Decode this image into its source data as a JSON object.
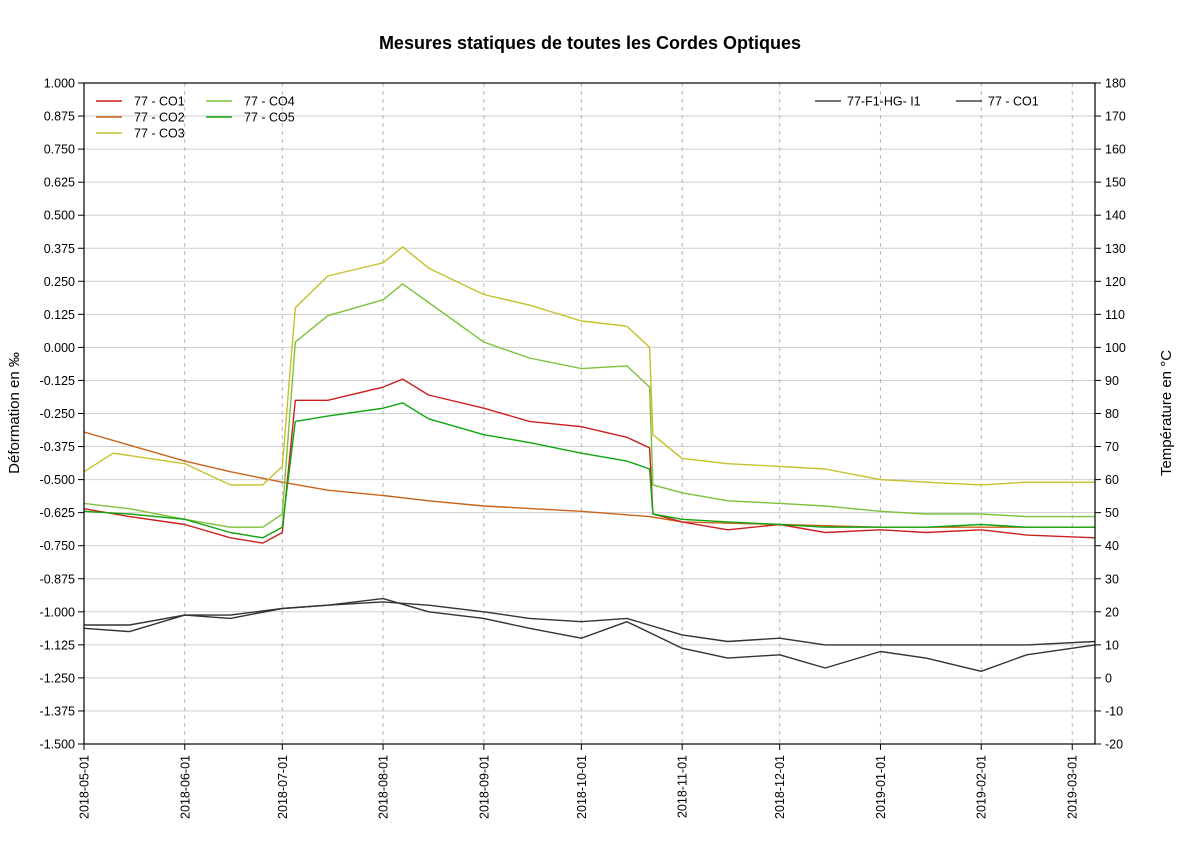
{
  "chart_data": {
    "type": "line",
    "title": "Mesures statiques de toutes les Cordes Optiques",
    "ylabel_left": "Déformation en ‰",
    "ylabel_right": "Température en °C",
    "grid": true,
    "x_axis": {
      "type": "date",
      "range": [
        "2018-05-01",
        "2019-03-08"
      ],
      "tick_labels": [
        "2018-05-01",
        "2018-06-01",
        "2018-07-01",
        "2018-08-01",
        "2018-09-01",
        "2018-10-01",
        "2018-11-01",
        "2018-12-01",
        "2019-01-01",
        "2019-02-01",
        "2019-03-01"
      ]
    },
    "y_left": {
      "range": [
        -1.5,
        1.0
      ],
      "tick_labels": [
        "1.000",
        "0.875",
        "0.750",
        "0.625",
        "0.500",
        "0.375",
        "0.250",
        "0.125",
        "0.000",
        "-0.125",
        "-0.250",
        "-0.375",
        "-0.500",
        "-0.625",
        "-0.750",
        "-0.875",
        "-1.000",
        "-1.125",
        "-1.250",
        "-1.375",
        "-1.500"
      ]
    },
    "y_right": {
      "range": [
        -20,
        180
      ],
      "tick_labels": [
        "180",
        "170",
        "160",
        "150",
        "140",
        "130",
        "120",
        "110",
        "100",
        "90",
        "80",
        "70",
        "60",
        "50",
        "40",
        "30",
        "20",
        "10",
        "0",
        "-10",
        "-20"
      ]
    },
    "legend_left": {
      "placement": "top-left",
      "entries": [
        {
          "label": "77 - CO1",
          "color": "#cc1f1f"
        },
        {
          "label": "77 - CO2",
          "color": "#c8641a"
        },
        {
          "label": "77 - CO3",
          "color": "#c6c02a"
        },
        {
          "label": "77 - CO4",
          "color": "#7cc23a"
        },
        {
          "label": "77 - CO5",
          "color": "#11a511"
        }
      ]
    },
    "legend_right": {
      "placement": "top-right",
      "entries": [
        {
          "label": "77-F1-HG- I1",
          "color": "#444444"
        },
        {
          "label": "77 - CO1",
          "color": "#444444"
        }
      ]
    },
    "series": [
      {
        "name": "77 - CO1",
        "axis": "left",
        "color": "#cc1f1f",
        "x": [
          "2018-05-01",
          "2018-05-15",
          "2018-06-01",
          "2018-06-15",
          "2018-06-25",
          "2018-07-01",
          "2018-07-05",
          "2018-07-15",
          "2018-08-01",
          "2018-08-07",
          "2018-08-15",
          "2018-09-01",
          "2018-09-15",
          "2018-10-01",
          "2018-10-15",
          "2018-10-22",
          "2018-10-23",
          "2018-11-01",
          "2018-11-15",
          "2018-12-01",
          "2018-12-15",
          "2019-01-01",
          "2019-01-15",
          "2019-02-01",
          "2019-02-15",
          "2019-03-08"
        ],
        "y": [
          -0.61,
          -0.64,
          -0.67,
          -0.72,
          -0.74,
          -0.7,
          -0.2,
          -0.2,
          -0.15,
          -0.12,
          -0.18,
          -0.23,
          -0.28,
          -0.3,
          -0.34,
          -0.38,
          -0.63,
          -0.66,
          -0.69,
          -0.67,
          -0.7,
          -0.69,
          -0.7,
          -0.69,
          -0.71,
          -0.72
        ]
      },
      {
        "name": "77 - CO2",
        "axis": "left",
        "color": "#c8641a",
        "x": [
          "2018-05-01",
          "2018-05-15",
          "2018-06-01",
          "2018-06-15",
          "2018-07-01",
          "2018-07-15",
          "2018-08-01",
          "2018-08-15",
          "2018-09-01",
          "2018-10-01",
          "2018-10-22",
          "2018-11-01",
          "2018-12-01",
          "2019-01-01",
          "2019-02-01",
          "2019-03-08"
        ],
        "y": [
          -0.32,
          -0.37,
          -0.43,
          -0.47,
          -0.51,
          -0.54,
          -0.56,
          -0.58,
          -0.6,
          -0.62,
          -0.64,
          -0.66,
          -0.67,
          -0.68,
          -0.68,
          -0.68
        ]
      },
      {
        "name": "77 - CO3",
        "axis": "left",
        "color": "#c6c02a",
        "x": [
          "2018-05-01",
          "2018-05-10",
          "2018-06-01",
          "2018-06-15",
          "2018-06-25",
          "2018-07-01",
          "2018-07-05",
          "2018-07-15",
          "2018-08-01",
          "2018-08-07",
          "2018-08-15",
          "2018-09-01",
          "2018-09-15",
          "2018-10-01",
          "2018-10-15",
          "2018-10-22",
          "2018-10-23",
          "2018-11-01",
          "2018-11-15",
          "2018-12-01",
          "2018-12-15",
          "2019-01-01",
          "2019-01-15",
          "2019-02-01",
          "2019-02-15",
          "2019-03-08"
        ],
        "y": [
          -0.47,
          -0.4,
          -0.44,
          -0.52,
          -0.52,
          -0.45,
          0.15,
          0.27,
          0.32,
          0.38,
          0.3,
          0.2,
          0.16,
          0.1,
          0.08,
          0.0,
          -0.33,
          -0.42,
          -0.44,
          -0.45,
          -0.46,
          -0.5,
          -0.51,
          -0.52,
          -0.51,
          -0.51
        ]
      },
      {
        "name": "77 - CO4",
        "axis": "left",
        "color": "#7cc23a",
        "x": [
          "2018-05-01",
          "2018-05-15",
          "2018-06-01",
          "2018-06-15",
          "2018-06-25",
          "2018-07-01",
          "2018-07-05",
          "2018-07-15",
          "2018-08-01",
          "2018-08-07",
          "2018-08-15",
          "2018-09-01",
          "2018-09-15",
          "2018-10-01",
          "2018-10-15",
          "2018-10-22",
          "2018-10-23",
          "2018-11-01",
          "2018-11-15",
          "2018-12-01",
          "2018-12-15",
          "2019-01-01",
          "2019-01-15",
          "2019-02-01",
          "2019-02-15",
          "2019-03-08"
        ],
        "y": [
          -0.59,
          -0.61,
          -0.65,
          -0.68,
          -0.68,
          -0.63,
          0.02,
          0.12,
          0.18,
          0.24,
          0.17,
          0.02,
          -0.04,
          -0.08,
          -0.07,
          -0.15,
          -0.52,
          -0.55,
          -0.58,
          -0.59,
          -0.6,
          -0.62,
          -0.63,
          -0.63,
          -0.64,
          -0.64
        ]
      },
      {
        "name": "77 - CO5",
        "axis": "left",
        "color": "#11a511",
        "x": [
          "2018-05-01",
          "2018-05-15",
          "2018-06-01",
          "2018-06-15",
          "2018-06-25",
          "2018-07-01",
          "2018-07-05",
          "2018-07-15",
          "2018-08-01",
          "2018-08-07",
          "2018-08-15",
          "2018-09-01",
          "2018-09-15",
          "2018-10-01",
          "2018-10-15",
          "2018-10-22",
          "2018-10-23",
          "2018-11-01",
          "2018-11-15",
          "2018-12-01",
          "2018-12-15",
          "2019-01-01",
          "2019-01-15",
          "2019-02-01",
          "2019-02-15",
          "2019-03-08"
        ],
        "y": [
          -0.62,
          -0.63,
          -0.65,
          -0.7,
          -0.72,
          -0.68,
          -0.28,
          -0.26,
          -0.23,
          -0.21,
          -0.27,
          -0.33,
          -0.36,
          -0.4,
          -0.43,
          -0.46,
          -0.63,
          -0.65,
          -0.66,
          -0.67,
          -0.68,
          -0.68,
          -0.68,
          -0.67,
          -0.68,
          -0.68
        ]
      },
      {
        "name": "77-F1-HG- I1",
        "axis": "right",
        "color": "#333333",
        "x": [
          "2018-05-01",
          "2018-05-15",
          "2018-06-01",
          "2018-06-15",
          "2018-07-01",
          "2018-07-15",
          "2018-08-01",
          "2018-08-15",
          "2018-09-01",
          "2018-09-15",
          "2018-10-01",
          "2018-10-15",
          "2018-11-01",
          "2018-11-15",
          "2018-12-01",
          "2018-12-15",
          "2019-01-01",
          "2019-01-15",
          "2019-02-01",
          "2019-02-15",
          "2019-03-08"
        ],
        "y": [
          15,
          14,
          19,
          18,
          21,
          22,
          24,
          20,
          18,
          15,
          12,
          17,
          9,
          6,
          7,
          3,
          8,
          6,
          2,
          7,
          10
        ]
      },
      {
        "name": "77 - CO1",
        "axis": "right",
        "color": "#333333",
        "x": [
          "2018-05-01",
          "2018-05-15",
          "2018-06-01",
          "2018-06-15",
          "2018-07-01",
          "2018-07-15",
          "2018-08-01",
          "2018-08-15",
          "2018-09-01",
          "2018-09-15",
          "2018-10-01",
          "2018-10-15",
          "2018-11-01",
          "2018-11-15",
          "2018-12-01",
          "2018-12-15",
          "2019-01-01",
          "2019-01-15",
          "2019-02-01",
          "2019-02-15",
          "2019-03-08"
        ],
        "y": [
          16,
          16,
          19,
          19,
          21,
          22,
          23,
          22,
          20,
          18,
          17,
          18,
          13,
          11,
          12,
          10,
          10,
          10,
          10,
          10,
          11
        ]
      }
    ]
  }
}
